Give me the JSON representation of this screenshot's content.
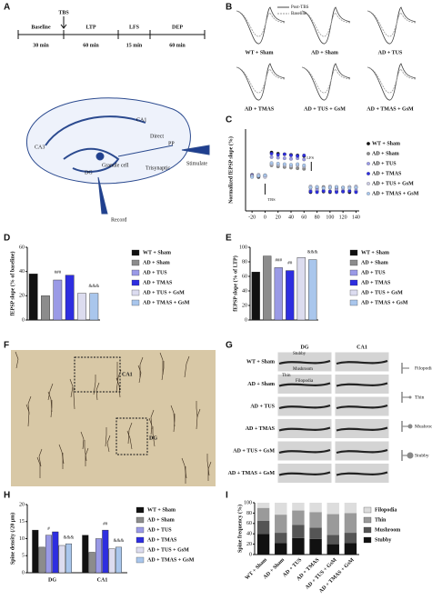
{
  "panel_letters": [
    "A",
    "B",
    "C",
    "D",
    "E",
    "F",
    "G",
    "H",
    "I"
  ],
  "timeline": {
    "phases": [
      "Baseline",
      "LTP",
      "LFS",
      "DEP"
    ],
    "durations": [
      "30 min",
      "60 min",
      "15 min",
      "60 min"
    ],
    "marker": "TBS"
  },
  "hippocampus": {
    "labels": [
      "CA1",
      "CA3",
      "DG",
      "Granule cell",
      "Direct",
      "PP",
      "Trisynaptic",
      "Stimulate",
      "Record"
    ]
  },
  "traces": {
    "legend": [
      "Post-TBS",
      "Baseline"
    ],
    "groups": [
      "WT + Sham",
      "AD + Sham",
      "AD + TUS",
      "AD + TMAS",
      "AD + TUS + GsM",
      "AD + TMAS + GsM"
    ]
  },
  "micrograph": {
    "labels": [
      "CA1",
      "DG"
    ]
  },
  "spines": {
    "columns": [
      "DG",
      "CA1"
    ],
    "rows": [
      "WT + Sham",
      "AD + Sham",
      "AD + TUS",
      "AD + TMAS",
      "AD + TUS + GsM",
      "AD + TMAS + GsM"
    ],
    "types": [
      "Stubby",
      "Mushroom",
      "Thin",
      "Filopodia"
    ],
    "legend": [
      "Filopodia",
      "Thin",
      "Mushroom",
      "Stubby"
    ]
  },
  "chart_data": [
    {
      "type": "scatter",
      "y_label": "Normalized fEPSP slope (%)",
      "annotations": [
        "TBS",
        "LFS"
      ],
      "x": [
        -20,
        -10,
        0,
        10,
        20,
        30,
        40,
        50,
        60,
        70,
        80,
        90,
        100,
        110,
        120,
        130,
        140
      ],
      "xlim": [
        -30,
        145
      ],
      "xticks": [
        -20,
        0,
        20,
        40,
        60,
        80,
        100,
        120,
        140
      ],
      "ylim": [
        40,
        180
      ],
      "series": [
        {
          "name": "WT + Sham",
          "color": "#111111",
          "values": [
            100,
            98,
            101,
            140,
            138,
            137,
            136,
            135,
            134,
            72,
            74,
            73,
            72,
            74,
            73,
            72,
            73
          ]
        },
        {
          "name": "AD + Sham",
          "color": "#8c8c8c",
          "values": [
            102,
            99,
            100,
            118,
            116,
            115,
            114,
            113,
            112,
            80,
            79,
            81,
            80,
            79,
            80,
            81,
            80
          ]
        },
        {
          "name": "AD + TUS",
          "color": "#9a9ae6",
          "values": [
            99,
            101,
            100,
            132,
            131,
            130,
            129,
            130,
            128,
            75,
            76,
            75,
            74,
            76,
            75,
            74,
            75
          ]
        },
        {
          "name": "AD + TMAS",
          "color": "#2e2ee0",
          "values": [
            101,
            100,
            99,
            138,
            136,
            137,
            135,
            134,
            135,
            73,
            72,
            74,
            73,
            72,
            73,
            74,
            72
          ]
        },
        {
          "name": "AD + TUS + GsM",
          "color": "#c9c9e0",
          "values": [
            100,
            102,
            98,
            120,
            119,
            118,
            117,
            118,
            116,
            82,
            81,
            80,
            82,
            81,
            80,
            81,
            82
          ]
        },
        {
          "name": "AD + TMAS + GsM",
          "color": "#a9c6ec",
          "values": [
            98,
            100,
            101,
            122,
            121,
            120,
            119,
            120,
            118,
            80,
            81,
            79,
            80,
            81,
            80,
            79,
            80
          ]
        }
      ]
    },
    {
      "type": "bar",
      "y_label": "fEPSP slope (% of baseline)",
      "annotations": [
        "###",
        "&&&"
      ],
      "categories": [
        "WT + Sham",
        "AD + Sham",
        "AD + TUS",
        "AD + TMAS",
        "AD + TUS + GsM",
        "AD + TMAS + GsM"
      ],
      "colors": [
        "#111111",
        "#8c8c8c",
        "#9a9ae6",
        "#2e2ee0",
        "#dcdcef",
        "#a9c6ec"
      ],
      "values": [
        38,
        20,
        33,
        37,
        22,
        22
      ],
      "ylim": [
        0,
        60
      ],
      "yticks": [
        0,
        20,
        40,
        60
      ]
    },
    {
      "type": "bar",
      "y_label": "fEPSP slope (% of LTP)",
      "annotations": [
        "###",
        "&&&",
        "##"
      ],
      "categories": [
        "WT + Sham",
        "AD + Sham",
        "AD + TUS",
        "AD + TMAS",
        "AD + TUS + GsM",
        "AD + TMAS + GsM"
      ],
      "colors": [
        "#111111",
        "#8c8c8c",
        "#9a9ae6",
        "#2e2ee0",
        "#dcdcef",
        "#a9c6ec"
      ],
      "values": [
        66,
        88,
        72,
        68,
        86,
        83
      ],
      "ylim": [
        0,
        100
      ],
      "yticks": [
        0,
        20,
        40,
        60,
        80,
        100
      ]
    },
    {
      "type": "grouped-bar",
      "y_label": "Spine density (/20 μm)",
      "annotations": [
        "#",
        "&&&",
        "##",
        "&&&"
      ],
      "categories": [
        "DG",
        "CA1"
      ],
      "ylim": [
        0,
        20
      ],
      "yticks": [
        0,
        5,
        10,
        15,
        20
      ],
      "series": [
        {
          "name": "WT + Sham",
          "color": "#111111",
          "values": [
            12.5,
            11
          ]
        },
        {
          "name": "AD + Sham",
          "color": "#8c8c8c",
          "values": [
            7.5,
            6
          ]
        },
        {
          "name": "AD + TUS",
          "color": "#9a9ae6",
          "values": [
            11,
            10
          ]
        },
        {
          "name": "AD + TMAS",
          "color": "#2e2ee0",
          "values": [
            12,
            12.5
          ]
        },
        {
          "name": "AD + TUS + GsM",
          "color": "#dcdcef",
          "values": [
            8,
            7
          ]
        },
        {
          "name": "AD + TMAS + GsM",
          "color": "#a9c6ec",
          "values": [
            8.5,
            7.5
          ]
        }
      ]
    },
    {
      "type": "stacked-bar",
      "y_label": "Spine frequency (%)",
      "categories": [
        "WT + Sham",
        "AD + Sham",
        "AD + TUS",
        "AD + TMAS",
        "AD + TUS + GsM",
        "AD + TMAS + GsM"
      ],
      "ylim": [
        0,
        100
      ],
      "yticks": [
        0,
        20,
        40,
        60,
        80,
        100
      ],
      "series": [
        {
          "name": "Stubby",
          "color": "#111111",
          "values": [
            40,
            22,
            32,
            30,
            20,
            22
          ]
        },
        {
          "name": "Mushroom",
          "color": "#555555",
          "values": [
            25,
            20,
            25,
            22,
            18,
            20
          ]
        },
        {
          "name": "Thin",
          "color": "#9a9a9a",
          "values": [
            25,
            35,
            28,
            30,
            40,
            38
          ]
        },
        {
          "name": "Filopodia",
          "color": "#dddddd",
          "values": [
            10,
            23,
            15,
            18,
            22,
            20
          ]
        }
      ]
    }
  ]
}
